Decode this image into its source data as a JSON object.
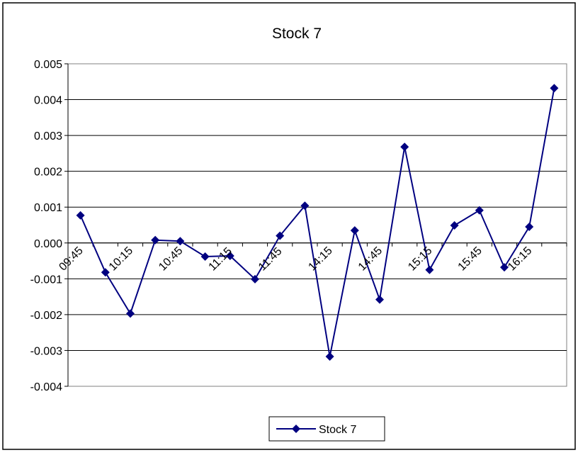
{
  "chart_data": {
    "type": "line",
    "title": "Stock 7",
    "xlabel": "",
    "ylabel": "",
    "x": [
      "09:45",
      "",
      "10:15",
      "",
      "10:45",
      "",
      "11:15",
      "",
      "11:45",
      "",
      "14:15",
      "",
      "14:45",
      "",
      "15:15",
      "",
      "15:45",
      "",
      "16:15",
      ""
    ],
    "tick_labels": [
      "09:45",
      "10:15",
      "10:45",
      "11:15",
      "11:45",
      "14:15",
      "14:45",
      "15:15",
      "15:45",
      "16:15"
    ],
    "y_ticks": [
      "0.005",
      "0.004",
      "0.003",
      "0.002",
      "0.001",
      "0.000",
      "-0.001",
      "-0.002",
      "-0.003",
      "-0.004"
    ],
    "ylim": [
      -0.004,
      0.005
    ],
    "grid": true,
    "legend_position": "bottom",
    "series": [
      {
        "name": "Stock 7",
        "color": "#000080",
        "marker": "diamond",
        "values": [
          0.00077,
          -0.00082,
          -0.00197,
          8e-05,
          5e-05,
          -0.00038,
          -0.00036,
          -0.00101,
          0.0002,
          0.00104,
          -0.00317,
          0.00035,
          -0.00158,
          0.00268,
          -0.00075,
          0.00049,
          0.00091,
          -0.00068,
          0.00045,
          0.00432
        ]
      }
    ]
  }
}
